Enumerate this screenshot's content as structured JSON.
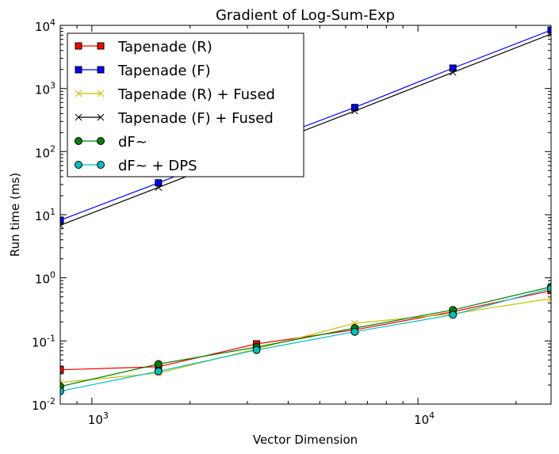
{
  "chart_data": {
    "type": "line",
    "title": "Gradient of Log-Sum-Exp",
    "xlabel": "Vector Dimension",
    "ylabel": "Run time (ms)",
    "xscale": "log",
    "yscale": "log",
    "xlim": [
      800,
      25600
    ],
    "ylim": [
      0.01,
      10000
    ],
    "x_ticks": [
      {
        "value": 1000,
        "base": "10",
        "exp": "3"
      },
      {
        "value": 10000,
        "base": "10",
        "exp": "4"
      }
    ],
    "y_ticks": [
      {
        "value": 0.01,
        "base": "10",
        "exp": "-2"
      },
      {
        "value": 0.1,
        "base": "10",
        "exp": "-1"
      },
      {
        "value": 1,
        "base": "10",
        "exp": "0"
      },
      {
        "value": 10,
        "base": "10",
        "exp": "1"
      },
      {
        "value": 100,
        "base": "10",
        "exp": "2"
      },
      {
        "value": 1000,
        "base": "10",
        "exp": "3"
      },
      {
        "value": 10000,
        "base": "10",
        "exp": "4"
      }
    ],
    "grid": false,
    "legend_position": "top-left",
    "x": [
      800,
      1600,
      3200,
      6400,
      12800,
      25600
    ],
    "series": [
      {
        "name": "Tapenade (R)",
        "color": "#ff0000",
        "marker": "square",
        "values": [
          0.035,
          0.039,
          0.09,
          0.15,
          0.29,
          0.63
        ]
      },
      {
        "name": "Tapenade (F)",
        "color": "#0000ff",
        "marker": "square",
        "values": [
          8.2,
          32,
          130,
          500,
          2100,
          8400
        ]
      },
      {
        "name": "Tapenade (R) + Fused",
        "color": "#bfbf00",
        "marker": "x",
        "values": [
          0.022,
          0.031,
          0.075,
          0.19,
          0.27,
          0.47
        ]
      },
      {
        "name": "Tapenade (F) + Fused",
        "color": "#000000",
        "marker": "x",
        "values": [
          6.8,
          27,
          110,
          440,
          1800,
          7300
        ]
      },
      {
        "name": "dF~",
        "color": "#008000",
        "marker": "circle",
        "values": [
          0.019,
          0.043,
          0.08,
          0.16,
          0.31,
          0.72
        ]
      },
      {
        "name": "dF~ + DPS",
        "color": "#00bfbf",
        "marker": "circle",
        "values": [
          0.016,
          0.033,
          0.072,
          0.14,
          0.26,
          0.68
        ]
      }
    ]
  }
}
